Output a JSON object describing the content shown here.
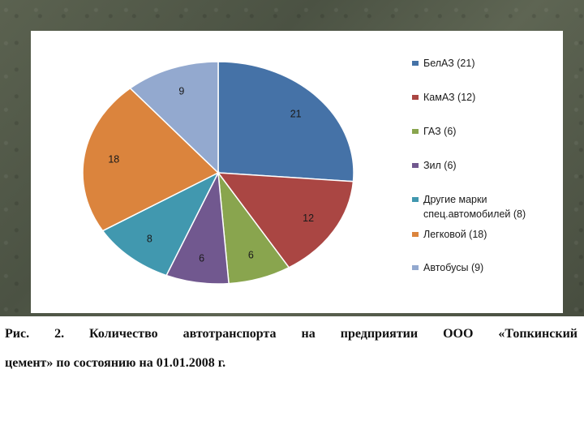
{
  "chart_data": {
    "type": "pie",
    "categories": [
      "БелАЗ",
      "КамАЗ",
      "ГАЗ",
      "Зил",
      "Другие марки спец.автомобилей",
      "Легковой",
      "Автобусы"
    ],
    "values": [
      21,
      12,
      6,
      6,
      8,
      18,
      9
    ],
    "slice_labels": [
      "21",
      "12",
      "6",
      "6",
      "8",
      "18",
      "9"
    ],
    "colors": [
      "#4572A7",
      "#AA4643",
      "#89A54E",
      "#71588F",
      "#4198AF",
      "#DB843D",
      "#93A9CF"
    ],
    "legend": {
      "position": "right",
      "entries": [
        [
          "БелАЗ (21)"
        ],
        [
          "КамАЗ (12)"
        ],
        [
          "ГАЗ (6)"
        ],
        [
          "Зил (6)"
        ],
        [
          "Другие марки",
          "спец.автомобилей (8)"
        ],
        [
          "Легковой (18)"
        ],
        [
          "Автобусы (9)"
        ]
      ]
    }
  },
  "caption": {
    "line1": "Рис. 2. Количество автотранспорта на предприятии ООО «Топкинский",
    "line2": "цемент» по состоянию на 01.01.2008 г."
  }
}
